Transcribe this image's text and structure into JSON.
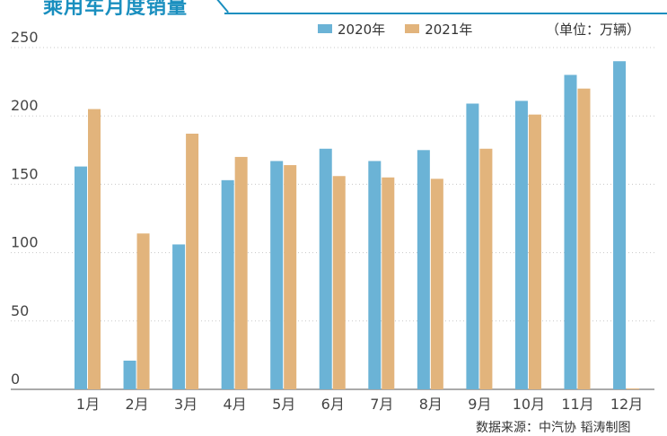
{
  "header": {
    "title": "乘用车月度销量",
    "unit": "（单位：万辆）",
    "source": "数据来源：中汽协 韬涛制图"
  },
  "colors": {
    "series_2020": "#6bb3d6",
    "series_2021": "#e2b47c",
    "accent": "#1a8fbf",
    "grid": "#c8c8c8"
  },
  "chart_data": {
    "type": "bar",
    "title": "乘用车月度销量",
    "xlabel": "",
    "ylabel": "",
    "ylim": [
      0,
      250
    ],
    "yticks": [
      "0",
      "50",
      "100",
      "150",
      "200",
      "250"
    ],
    "grid": true,
    "legend_position": "top-right",
    "categories": [
      "1月",
      "2月",
      "3月",
      "4月",
      "5月",
      "6月",
      "7月",
      "8月",
      "9月",
      "10月",
      "11月",
      "12月"
    ],
    "series": [
      {
        "name": "2020年",
        "values": [
          163,
          21,
          106,
          153,
          167,
          176,
          167,
          175,
          209,
          211,
          230,
          240
        ]
      },
      {
        "name": "2021年",
        "values": [
          205,
          114,
          187,
          170,
          164,
          156,
          155,
          154,
          176,
          201,
          220,
          0
        ]
      }
    ]
  }
}
